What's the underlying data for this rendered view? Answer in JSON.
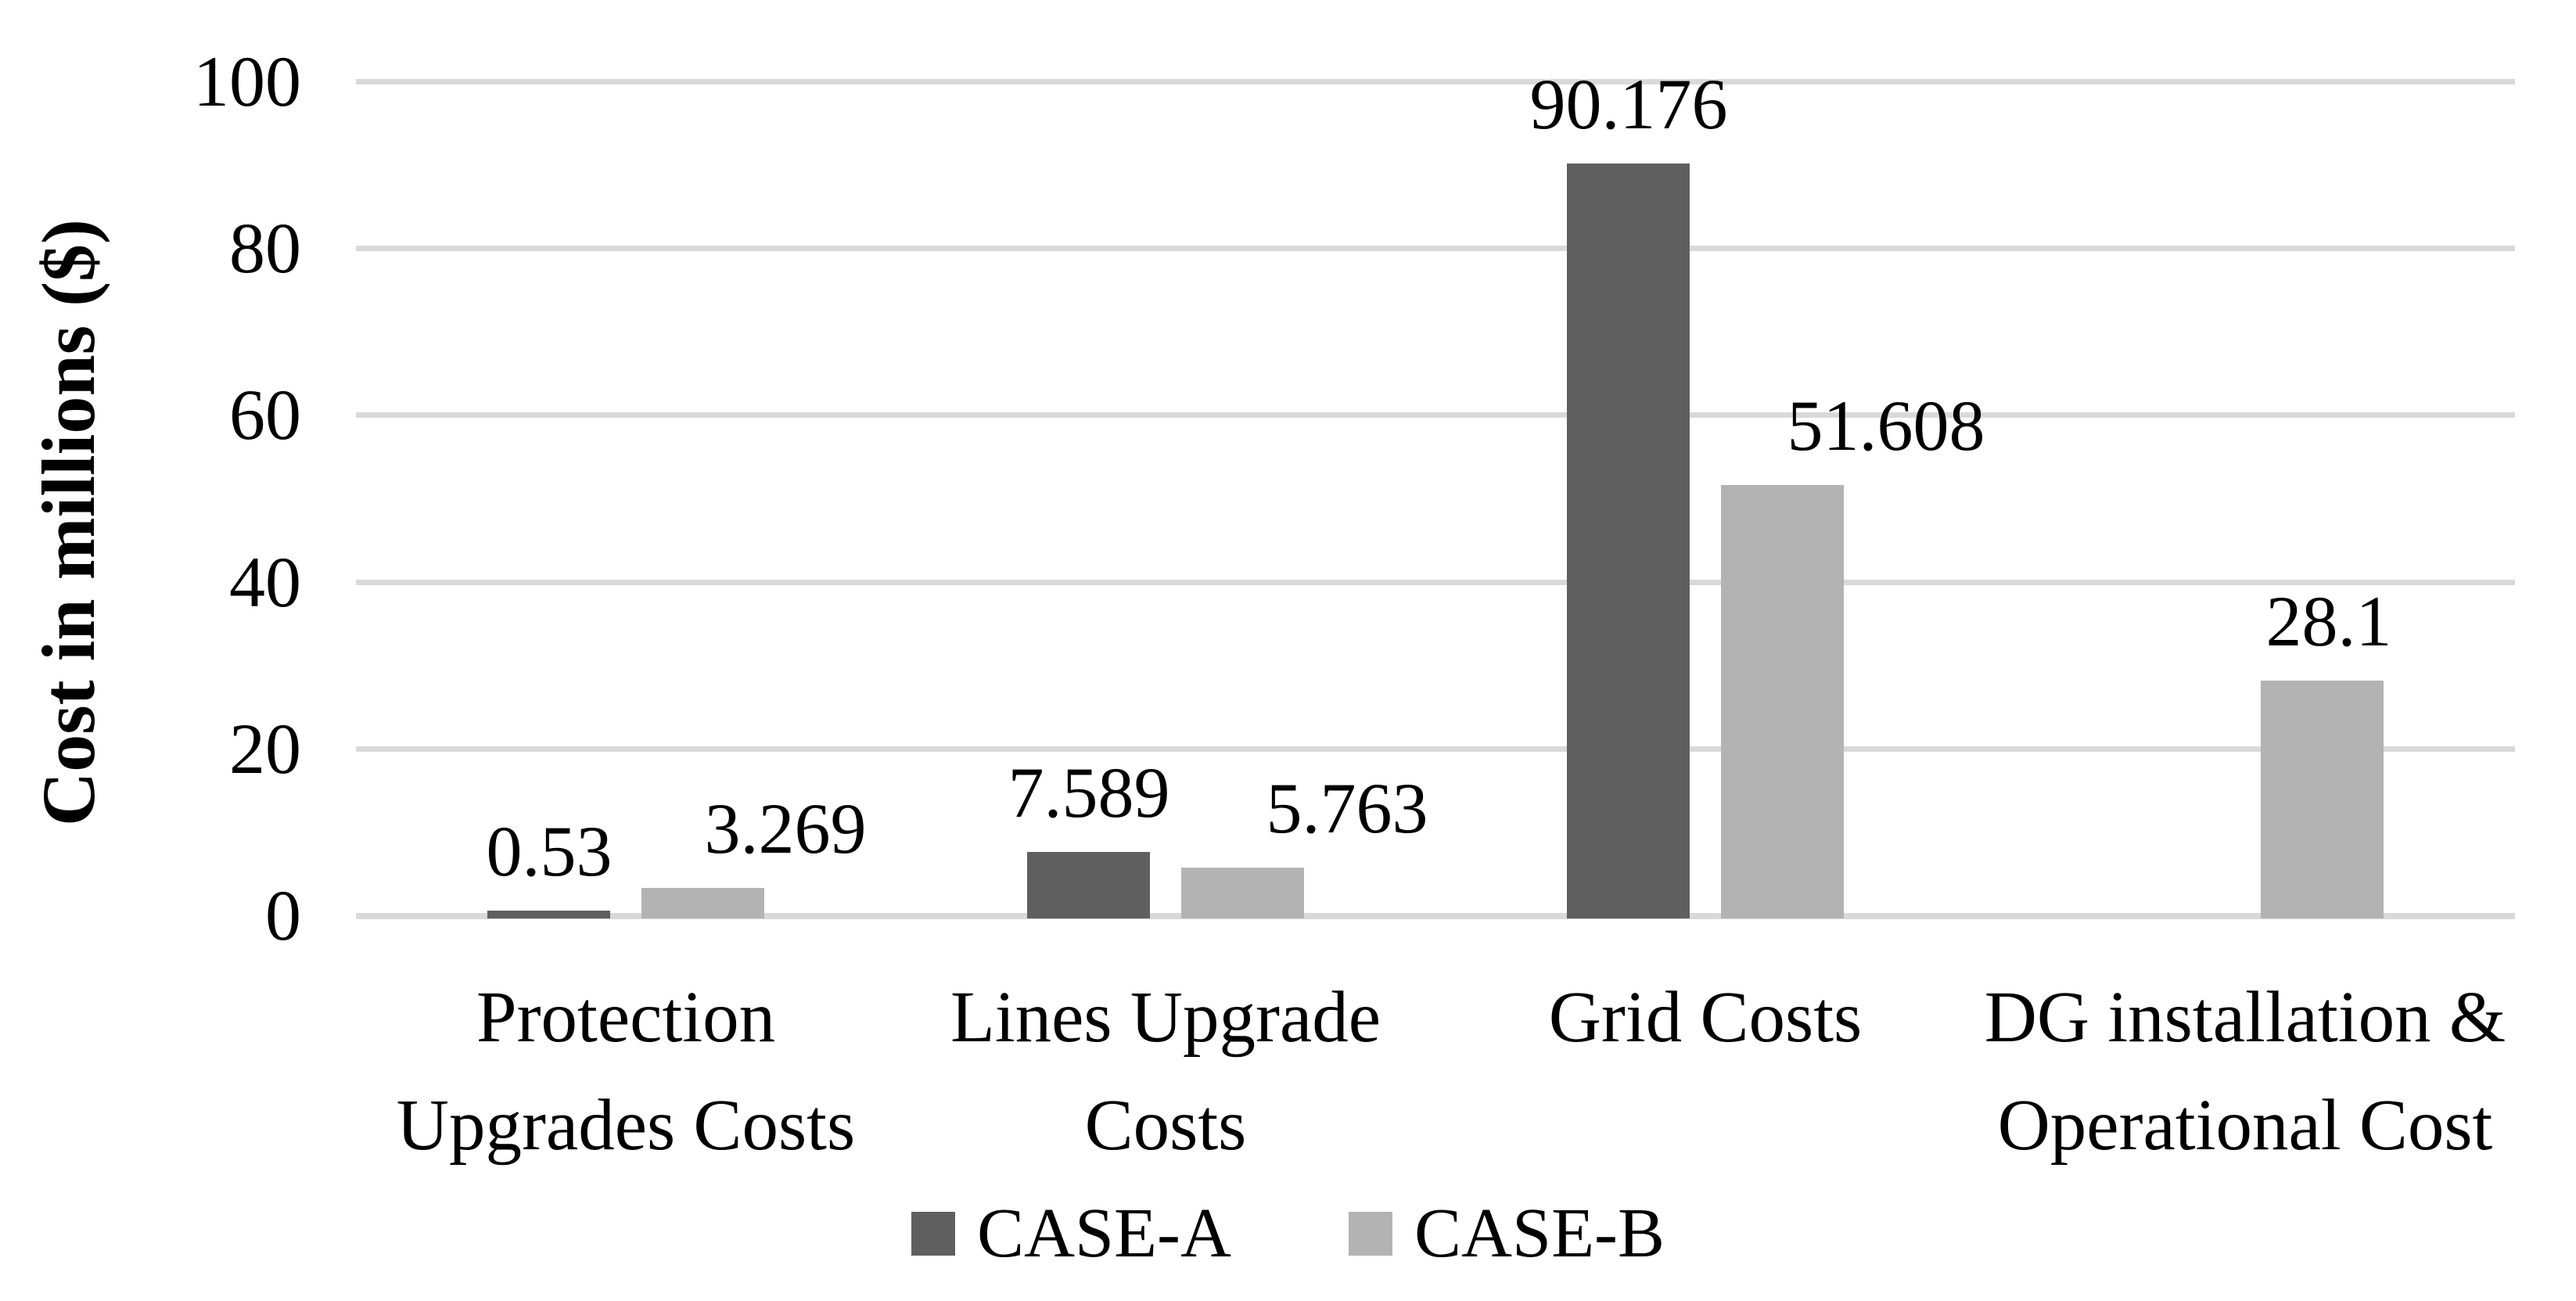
{
  "figure": {
    "background": "#ffffff",
    "text_color": "#000000",
    "gridline_color": "#d9d9d9"
  },
  "chart_data": {
    "type": "bar",
    "title": "",
    "xlabel": "",
    "ylabel": "Cost in millions ($)",
    "categories": [
      "Protection Upgrades Costs",
      "Lines Upgrade Costs",
      "Grid Costs",
      "DG installation & Operational Cost"
    ],
    "category_lines": [
      [
        "Protection",
        "Upgrades Costs"
      ],
      [
        "Lines Upgrade",
        "Costs"
      ],
      [
        "Grid Costs"
      ],
      [
        "DG installation &",
        "Operational Cost"
      ]
    ],
    "series": [
      {
        "name": "CASE-A",
        "color": "#5f5f5f",
        "values": [
          0.53,
          7.589,
          90.176,
          null
        ],
        "labels": [
          "0.53",
          "7.589",
          "90.176",
          ""
        ],
        "label_dx": [
          0,
          0,
          0,
          0
        ]
      },
      {
        "name": "CASE-B",
        "color": "#b3b3b3",
        "values": [
          3.269,
          5.763,
          51.608,
          28.1
        ],
        "labels": [
          "3.269",
          "5.763",
          "51.608",
          "28.1"
        ],
        "label_dx": [
          105,
          133,
          132,
          8
        ]
      }
    ],
    "ylim": [
      0,
      100
    ],
    "yticks": [
      0,
      20,
      40,
      60,
      80,
      100
    ],
    "grid": true,
    "legend_position": "bottom"
  }
}
